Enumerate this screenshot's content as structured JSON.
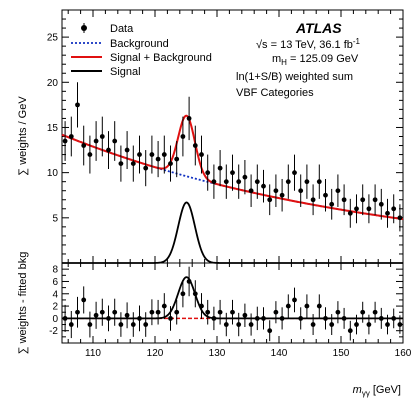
{
  "chart_data": [
    {
      "type": "scatter",
      "panel": "main",
      "ylabel": "∑ weights / GeV",
      "xlim": [
        105,
        160
      ],
      "ylim": [
        0,
        28
      ],
      "yticks": [
        5,
        10,
        15,
        20,
        25
      ],
      "legend": {
        "placement": "top-left",
        "entries": [
          {
            "label": "Data",
            "style": "marker",
            "color": "#000000"
          },
          {
            "label": "Background",
            "style": "dotted",
            "color": "#1030c0"
          },
          {
            "label": "Signal + Background",
            "style": "solid",
            "color": "#e01010"
          },
          {
            "label": "Signal",
            "style": "solid",
            "color": "#000000"
          }
        ]
      },
      "annotations": {
        "experiment": "ATLAS",
        "energy_prefix": "√s = 13 TeV, 36.1 fb",
        "energy_exp": "-1",
        "mass_label_main": "m",
        "mass_label_sub": "H",
        "mass_value": " = 125.09 GeV",
        "weighting": "ln(1+S/B) weighted sum",
        "category": "VBF Categories"
      },
      "bin_width": 1,
      "data_x_start": 105.5,
      "data_y": [
        13.5,
        14,
        17.5,
        13,
        12,
        13.5,
        14,
        12.5,
        13.5,
        11,
        12.5,
        11,
        12,
        10.5,
        12,
        11.5,
        12,
        11,
        11.5,
        14,
        16,
        13,
        12,
        10,
        9,
        10.5,
        9,
        10,
        9,
        9.5,
        8,
        9,
        8.5,
        7,
        8,
        7.5,
        9,
        10,
        8,
        9,
        7,
        9,
        7.5,
        6.5,
        8,
        7,
        5.5,
        6,
        7,
        6,
        7,
        6.5,
        5.5,
        6,
        5
      ],
      "data_err": [
        2.2,
        2.2,
        2.5,
        2.2,
        2.1,
        2.2,
        2.2,
        2.1,
        2.2,
        2.0,
        2.1,
        2.0,
        2.1,
        2.0,
        2.1,
        2.0,
        2.1,
        2.0,
        2.0,
        2.2,
        2.4,
        2.2,
        2.1,
        2.0,
        1.9,
        2.0,
        1.9,
        2.0,
        1.9,
        1.9,
        1.8,
        1.9,
        1.8,
        1.7,
        1.8,
        1.8,
        1.9,
        2.0,
        1.8,
        1.9,
        1.7,
        1.9,
        1.8,
        1.7,
        1.8,
        1.7,
        1.6,
        1.6,
        1.7,
        1.6,
        1.7,
        1.7,
        1.6,
        1.6,
        1.5
      ],
      "background_model": {
        "a": 14.2,
        "slope": 0.0195,
        "x0": 105
      },
      "signal_model": {
        "mean": 125.09,
        "sigma": 1.35,
        "amplitude": 6.7
      },
      "colors": {
        "data": "#000000",
        "background": "#1030c0",
        "signal_plus_background": "#e01010",
        "signal": "#000000"
      }
    },
    {
      "type": "scatter",
      "panel": "residual",
      "xlabel_main": "m",
      "xlabel_sub": "γγ",
      "xlabel_unit": " [GeV]",
      "ylabel": "∑ weights - fitted bkg",
      "xlim": [
        105,
        160
      ],
      "ylim": [
        -4,
        9
      ],
      "xticks": [
        110,
        120,
        130,
        140,
        150,
        160
      ],
      "yticks": [
        -2,
        0,
        2,
        4,
        6,
        8
      ],
      "residual_y": [
        0,
        -1,
        1,
        3,
        -1,
        0.5,
        1,
        0,
        1,
        -1,
        0.5,
        -1,
        0,
        -1,
        1,
        1,
        2,
        0,
        1,
        4,
        6,
        4,
        2,
        1,
        0,
        1,
        -1,
        1,
        -1,
        0.5,
        -1,
        0,
        0,
        -2,
        1,
        0,
        2,
        3,
        0,
        2,
        -1,
        2,
        0,
        -1,
        1,
        0,
        -2,
        -1,
        1,
        -1,
        1,
        0,
        -1,
        0,
        -1
      ],
      "residual_err": [
        2.2,
        2.2,
        2.5,
        2.2,
        2.1,
        2.2,
        2.2,
        2.1,
        2.2,
        2.0,
        2.1,
        2.0,
        2.1,
        2.0,
        2.1,
        2.0,
        2.1,
        2.0,
        2.0,
        2.2,
        2.4,
        2.2,
        2.1,
        2.0,
        1.9,
        2.0,
        1.9,
        2.0,
        1.9,
        1.9,
        1.8,
        1.9,
        1.8,
        1.7,
        1.8,
        1.8,
        1.9,
        2.0,
        1.8,
        1.9,
        1.7,
        1.9,
        1.8,
        1.7,
        1.8,
        1.7,
        1.6,
        1.6,
        1.7,
        1.6,
        1.7,
        1.7,
        1.6,
        1.6,
        1.5
      ],
      "zero_line": 0
    }
  ]
}
